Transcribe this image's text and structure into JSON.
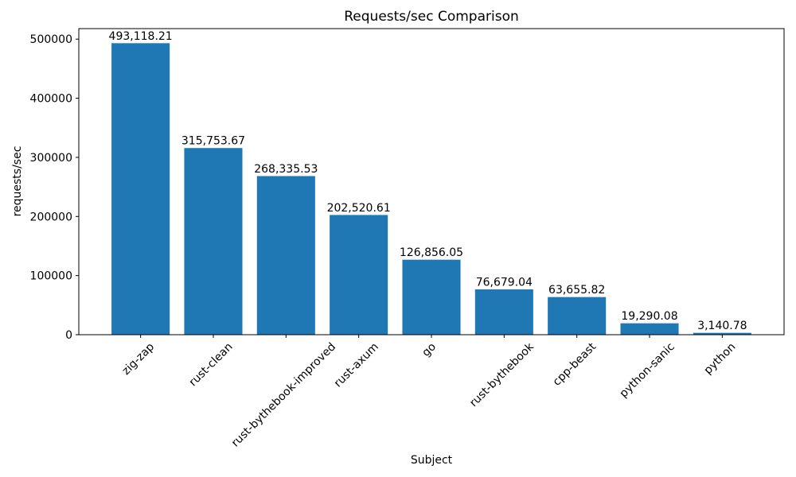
{
  "figure": {
    "background": "#ffffff",
    "text_color": "#000000",
    "spine_color": "#000000"
  },
  "chart_data": {
    "type": "bar",
    "title": "Requests/sec Comparison",
    "xlabel": "Subject",
    "ylabel": "requests/sec",
    "categories": [
      "zig-zap",
      "rust-clean",
      "rust-bythebook-improved",
      "rust-axum",
      "go",
      "rust-bythebook",
      "cpp-beast",
      "python-sanic",
      "python"
    ],
    "values": [
      493118.21,
      315753.67,
      268335.53,
      202520.61,
      126856.05,
      76679.04,
      63655.82,
      19290.08,
      3140.78
    ],
    "value_labels": [
      "493,118.21",
      "315,753.67",
      "268,335.53",
      "202,520.61",
      "126,856.05",
      "76,679.04",
      "63,655.82",
      "19,290.08",
      "3,140.78"
    ],
    "yticks": [
      0,
      100000,
      200000,
      300000,
      400000,
      500000
    ],
    "ytick_labels": [
      "0",
      "100000",
      "200000",
      "300000",
      "400000",
      "500000"
    ],
    "ylim": [
      0,
      517774
    ],
    "bar_color": "#1f77b4",
    "grid": false,
    "legend": null,
    "xtick_rotation_deg": 45
  }
}
